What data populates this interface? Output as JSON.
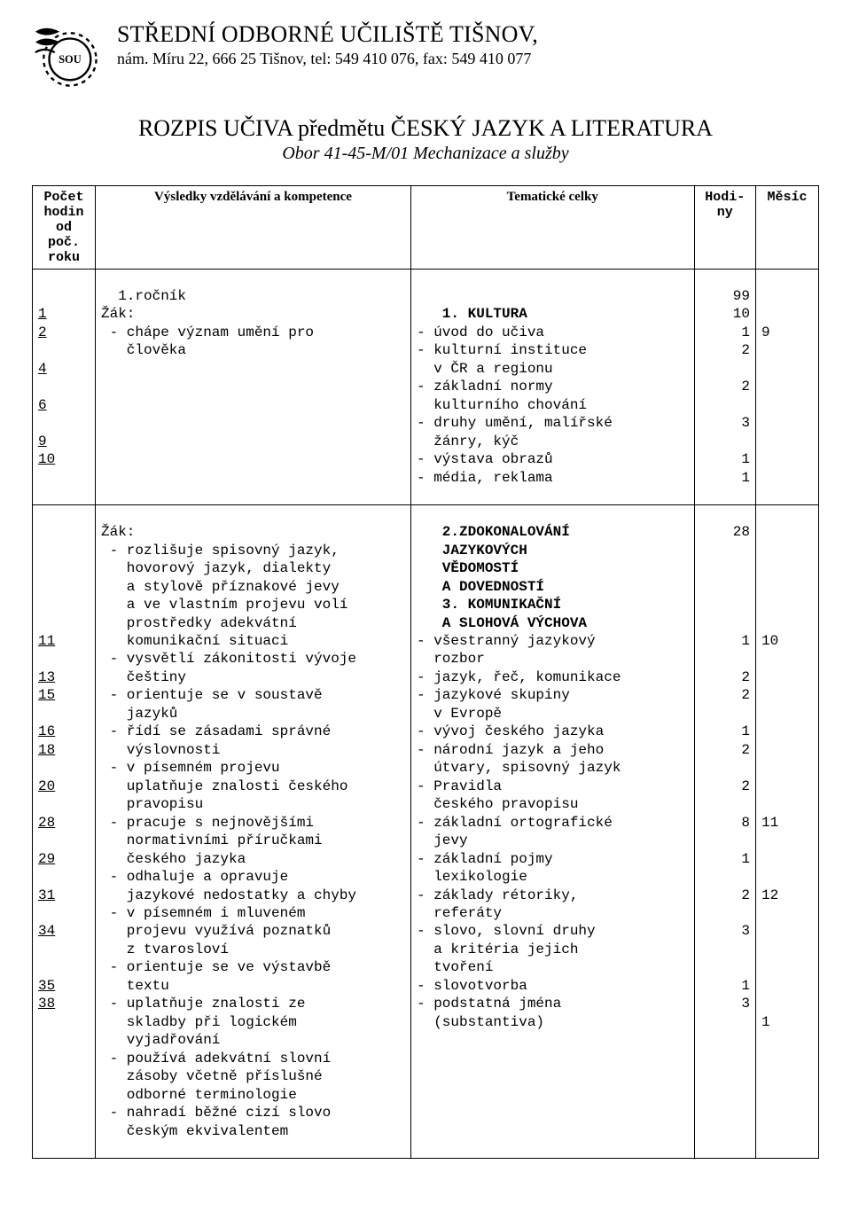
{
  "colors": {
    "background": "#ffffff",
    "text": "#000000",
    "border": "#000000"
  },
  "typography": {
    "serif_family": "Times New Roman",
    "mono_family": "Courier New",
    "h1_size_pt": 20,
    "body_size_pt": 12,
    "mono_size_pt": 12
  },
  "header": {
    "school_name": "STŘEDNÍ ODBORNÉ UČILIŠTĚ TIŠNOV,",
    "address_line": "nám. Míru 22, 666 25 Tišnov, tel: 549 410 076, fax: 549 410 077",
    "logo_label": "SOU"
  },
  "title": {
    "main": "ROZPIS UČIVA  předmětu  ČESKÝ JAZYK A LITERATURA",
    "sub": "Obor 41-45-M/01 Mechanizace a služby"
  },
  "table": {
    "headers": {
      "col1": "Počet hodin od poč. roku",
      "col2": "Výsledky vzdělávání a kompetence",
      "col3": "Tematické celky",
      "col4": "Hodi-ny",
      "col5": "Měsíc"
    },
    "block1": {
      "hours_start": "\n1\n2\n\n4\n\n6\n\n9\n10",
      "outcomes": "  1.ročník\nŽák:\n - chápe význam umění pro\n   člověka",
      "topics": "\n   1. KULTURA\n- úvod do učiva\n- kulturní instituce\n  v ČR a regionu\n- základní normy\n  kulturního chování\n- druhy umění, malířské\n  žánry, kýč\n- výstava obrazů\n- média, reklama",
      "hours": "99\n10\n1\n2\n\n2\n\n3\n\n1\n1",
      "month": "\n\n9"
    },
    "block2": {
      "hours_start": "\n\n\n\n\n\n11\n\n13\n15\n\n16\n18\n\n20\n\n28\n\n29\n\n31\n\n34\n\n\n35\n38",
      "outcomes": "Žák:\n - rozlišuje spisovný jazyk,\n   hovorový jazyk, dialekty\n   a stylově příznakové jevy\n   a ve vlastním projevu volí\n   prostředky adekvátní\n   komunikační situaci\n - vysvětlí zákonitosti vývoje\n   češtiny\n - orientuje se v soustavě\n   jazyků\n - řídí se zásadami správné\n   výslovnosti\n - v písemném projevu\n   uplatňuje znalosti českého\n   pravopisu\n - pracuje s nejnovějšími\n   normativními příručkami\n   českého jazyka\n - odhaluje a opravuje\n   jazykové nedostatky a chyby\n - v písemném i mluveném\n   projevu využívá poznatků\n   z tvarosloví\n - orientuje se ve výstavbě\n   textu\n - uplatňuje znalosti ze\n   skladby při logickém\n   vyjadřování\n - používá adekvátní slovní\n   zásoby včetně příslušné\n   odborné terminologie\n - nahradí běžné cizí slovo\n   českým ekvivalentem",
      "topics": "   2.ZDOKONALOVÁNÍ\n   JAZYKOVÝCH\n   VĚDOMOSTÍ\n   A DOVEDNOSTÍ\n   3. KOMUNIKAČNÍ\n   A SLOHOVÁ VÝCHOVA\n- všestranný jazykový\n  rozbor\n- jazyk, řeč, komunikace\n- jazykové skupiny\n  v Evropě\n- vývoj českého jazyka\n- národní jazyk a jeho\n  útvary, spisovný jazyk\n- Pravidla\n  českého pravopisu\n- základní ortografické\n  jevy\n- základní pojmy\n  lexikologie\n- základy rétoriky,\n  referáty\n- slovo, slovní druhy\n  a kritéria jejich\n  tvoření\n- slovotvorba\n- podstatná jména\n  (substantiva)",
      "hours": "28\n\n\n\n\n\n1\n\n2\n2\n\n1\n2\n\n2\n\n8\n\n1\n\n2\n\n3\n\n\n1\n3",
      "month": "\n\n\n\n\n\n10\n\n\n\n\n\n\n\n\n\n11\n\n\n\n12\n\n\n\n\n\n\n1"
    }
  }
}
